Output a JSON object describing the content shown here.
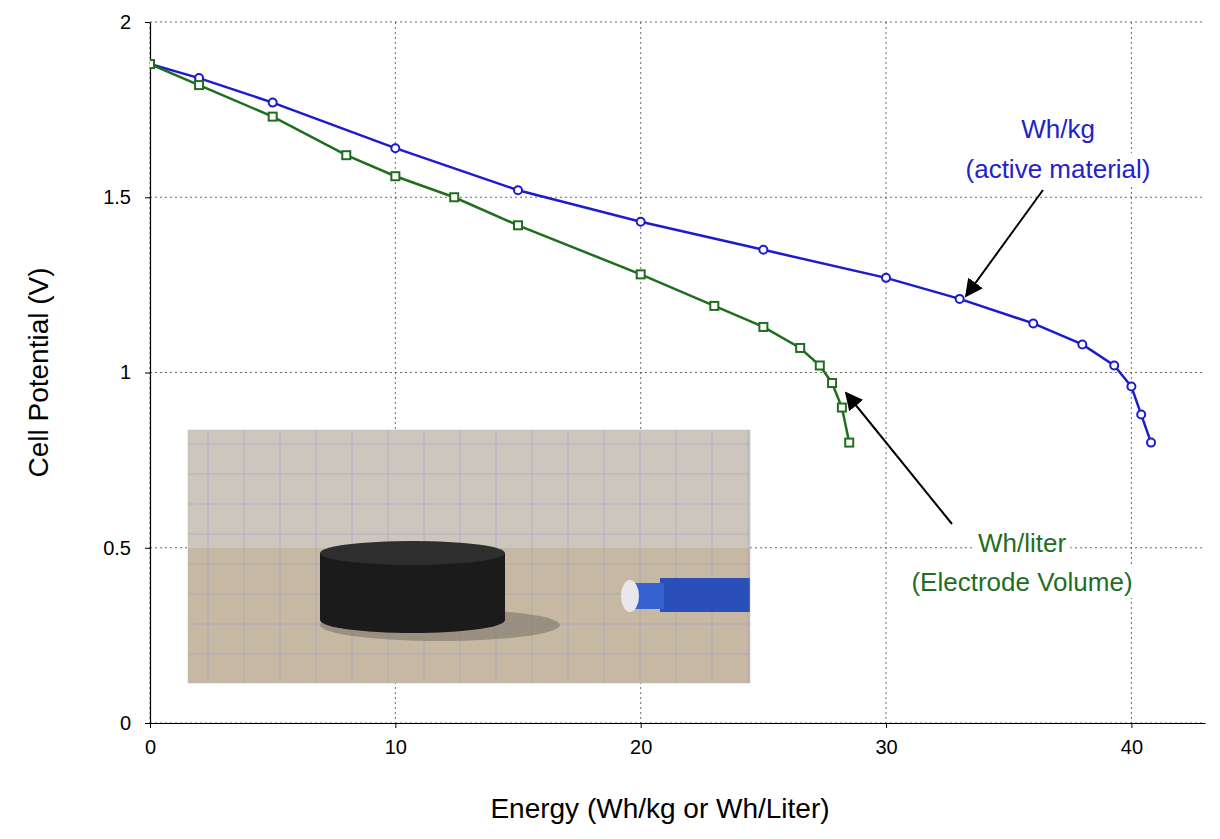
{
  "chart_data": {
    "type": "line",
    "x_label": "Energy (Wh/kg or Wh/Liter)",
    "y_label": "Cell Potential (V)",
    "xlim": [
      0,
      43
    ],
    "ylim": [
      0,
      2
    ],
    "xticks": [
      0,
      10,
      20,
      30,
      40
    ],
    "yticks": [
      0,
      0.5,
      1,
      1.5,
      2
    ],
    "grid": true,
    "series": [
      {
        "color": "#1c1ccf",
        "marker": "circle",
        "line_style": "solid",
        "x": [
          0,
          2,
          5,
          10,
          15,
          20,
          25,
          30,
          33,
          36,
          38,
          39.3,
          40,
          40.4,
          40.8
        ],
        "values": [
          1.88,
          1.84,
          1.77,
          1.64,
          1.52,
          1.43,
          1.35,
          1.27,
          1.21,
          1.14,
          1.08,
          1.02,
          0.96,
          0.88,
          0.8
        ]
      },
      {
        "color": "#1f6e1f",
        "marker": "square",
        "line_style": "solid",
        "x": [
          0,
          2,
          5,
          8,
          10,
          12.4,
          15,
          20,
          23,
          25,
          26.5,
          27.3,
          27.8,
          28.2,
          28.5
        ],
        "values": [
          1.88,
          1.82,
          1.73,
          1.62,
          1.56,
          1.5,
          1.42,
          1.28,
          1.19,
          1.13,
          1.07,
          1.02,
          0.97,
          0.9,
          0.8
        ]
      }
    ],
    "annotations": [
      {
        "text": "Wh/kg",
        "color": "#2222cc"
      },
      {
        "text": "(active material)",
        "color": "#2222cc"
      },
      {
        "text": "Wh/liter",
        "color": "#1f6e1f"
      },
      {
        "text": "(Electrode Volume)",
        "color": "#1f6e1f"
      }
    ]
  }
}
